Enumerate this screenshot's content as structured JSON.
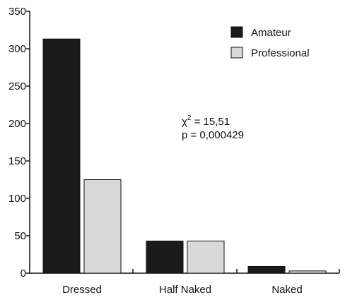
{
  "chart_data": {
    "type": "bar",
    "categories": [
      "Dressed",
      "Half Naked",
      "Naked"
    ],
    "series": [
      {
        "name": "Amateur",
        "color": "#1a1a1a",
        "values": [
          313,
          43,
          9
        ]
      },
      {
        "name": "Professional",
        "color": "#d9d9d9",
        "values": [
          125,
          43,
          3
        ]
      }
    ],
    "ylim": [
      0,
      350
    ],
    "yticks": [
      0,
      50,
      100,
      150,
      200,
      250,
      300,
      350
    ],
    "grid": false,
    "legend_position": "top-right",
    "annotation": {
      "chi_symbol": "χ",
      "chi_exponent": "2",
      "chi_value": " = 15,51",
      "p_line": "p = 0,000429"
    }
  }
}
